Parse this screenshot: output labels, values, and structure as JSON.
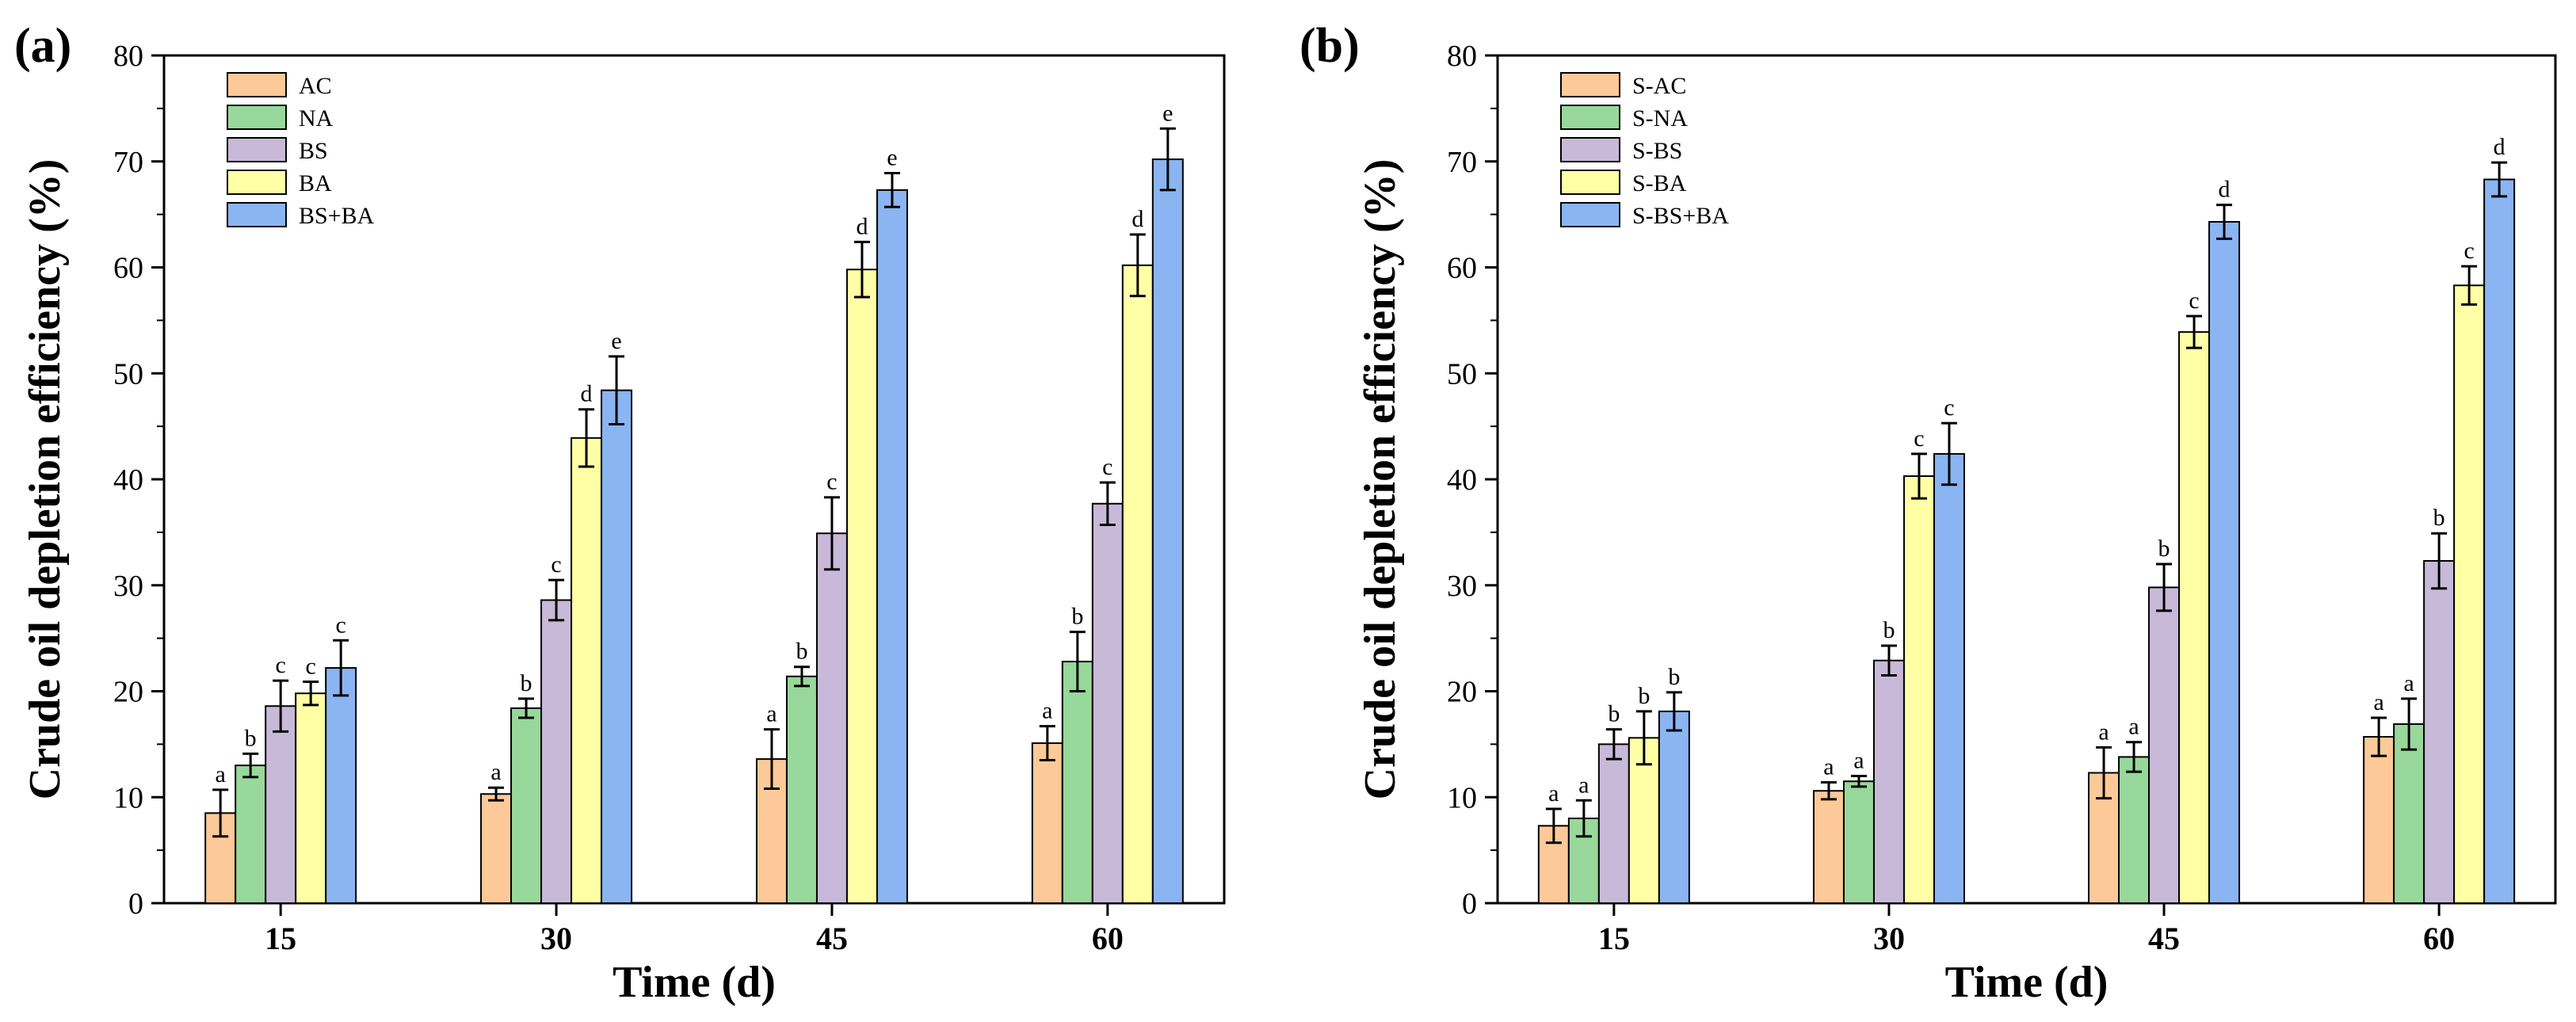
{
  "chart_data": [
    {
      "type": "bar",
      "panel_label": "(a)",
      "categories": [
        "15",
        "30",
        "45",
        "60"
      ],
      "xlabel": "Time (d)",
      "ylabel": "Crude oil depletion efficiency (%)",
      "ylim": [
        0,
        80
      ],
      "yticks": [
        "0",
        "10",
        "20",
        "30",
        "40",
        "50",
        "60",
        "70",
        "80"
      ],
      "legend_position": "top-left",
      "series": [
        {
          "name": "AC",
          "color": "#FDC998",
          "values": [
            8.5,
            10.3,
            13.6,
            15.1
          ],
          "errors": [
            2.2,
            0.6,
            2.8,
            1.6
          ],
          "letters": [
            "a",
            "a",
            "a",
            "a"
          ]
        },
        {
          "name": "NA",
          "color": "#98D89B",
          "values": [
            13.0,
            18.4,
            21.4,
            22.8
          ],
          "errors": [
            1.1,
            0.9,
            0.9,
            2.8
          ],
          "letters": [
            "b",
            "b",
            "b",
            "b"
          ]
        },
        {
          "name": "BS",
          "color": "#C8B9D8",
          "values": [
            18.6,
            28.6,
            34.9,
            37.7
          ],
          "errors": [
            2.4,
            1.9,
            3.4,
            2.0
          ],
          "letters": [
            "c",
            "c",
            "c",
            "c"
          ]
        },
        {
          "name": "BA",
          "color": "#FFFFA6",
          "values": [
            19.8,
            43.9,
            59.8,
            60.2
          ],
          "errors": [
            1.1,
            2.7,
            2.6,
            2.9
          ],
          "letters": [
            "c",
            "d",
            "d",
            "d"
          ]
        },
        {
          "name": "BS+BA",
          "color": "#8AB5F2",
          "values": [
            22.2,
            48.4,
            67.3,
            70.2
          ],
          "errors": [
            2.6,
            3.2,
            1.6,
            2.9
          ],
          "letters": [
            "c",
            "e",
            "e",
            "e"
          ]
        }
      ]
    },
    {
      "type": "bar",
      "panel_label": "(b)",
      "categories": [
        "15",
        "30",
        "45",
        "60"
      ],
      "xlabel": "Time (d)",
      "ylabel": "Crude oil depletion efficiency (%)",
      "ylim": [
        0,
        80
      ],
      "yticks": [
        "0",
        "10",
        "20",
        "30",
        "40",
        "50",
        "60",
        "70",
        "80"
      ],
      "legend_position": "top-left",
      "series": [
        {
          "name": "S-AC",
          "color": "#FDC998",
          "values": [
            7.3,
            10.6,
            12.3,
            15.7
          ],
          "errors": [
            1.6,
            0.8,
            2.4,
            1.8
          ],
          "letters": [
            "a",
            "a",
            "a",
            "a"
          ]
        },
        {
          "name": "S-NA",
          "color": "#98D89B",
          "values": [
            8.0,
            11.5,
            13.8,
            16.9
          ],
          "errors": [
            1.7,
            0.5,
            1.4,
            2.4
          ],
          "letters": [
            "a",
            "a",
            "a",
            "a"
          ]
        },
        {
          "name": "S-BS",
          "color": "#C8B9D8",
          "values": [
            15.0,
            22.9,
            29.8,
            32.3
          ],
          "errors": [
            1.4,
            1.4,
            2.2,
            2.6
          ],
          "letters": [
            "b",
            "b",
            "b",
            "b"
          ]
        },
        {
          "name": "S-BA",
          "color": "#FFFFA6",
          "values": [
            15.6,
            40.3,
            53.9,
            58.3
          ],
          "errors": [
            2.5,
            2.1,
            1.5,
            1.8
          ],
          "letters": [
            "b",
            "c",
            "c",
            "c"
          ]
        },
        {
          "name": "S-BS+BA",
          "color": "#8AB5F2",
          "values": [
            18.1,
            42.4,
            64.3,
            68.3
          ],
          "errors": [
            1.8,
            2.9,
            1.6,
            1.6
          ],
          "letters": [
            "b",
            "c",
            "d",
            "d"
          ]
        }
      ]
    }
  ]
}
